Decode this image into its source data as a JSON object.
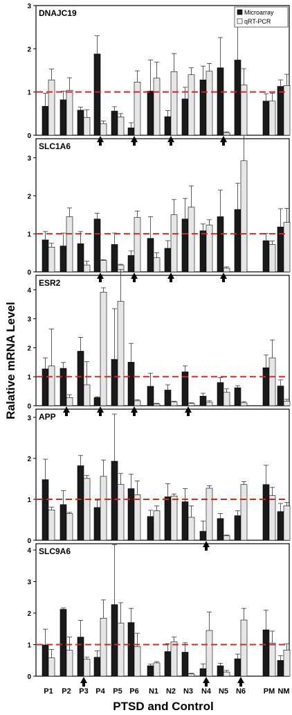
{
  "figure": {
    "ylabel": "Ralative mRNA Level",
    "xlabel": "PTSD and Control",
    "categories": [
      "P1",
      "P2",
      "P3",
      "P4",
      "P5",
      "P6",
      "N1",
      "N2",
      "N3",
      "N4",
      "N5",
      "N6",
      "PM",
      "NM"
    ],
    "legend": [
      "Microarray",
      "qRT-PCR"
    ],
    "reference_line": 1,
    "colors": {
      "microarray": "#1a1a1a",
      "qrtpcr": "#e6e6e6",
      "reference": "#d9251c",
      "arrow": "#000000"
    }
  },
  "chart_data": [
    {
      "type": "bar",
      "title": "DNAJC19",
      "ylim": [
        0,
        3
      ],
      "yticks": [
        0,
        1,
        2,
        3
      ],
      "categories": [
        "P1",
        "P2",
        "P3",
        "P4",
        "P5",
        "P6",
        "N1",
        "N2",
        "N3",
        "N4",
        "N5",
        "N6",
        "PM",
        "NM"
      ],
      "series": [
        {
          "name": "Microarray",
          "values": [
            0.67,
            0.82,
            0.58,
            1.88,
            0.56,
            0.17,
            1.02,
            0.43,
            0.84,
            1.28,
            1.56,
            1.74,
            0.79,
            1.13
          ],
          "errors": [
            0.3,
            0.2,
            0.07,
            0.42,
            0.1,
            0.12,
            0.72,
            0.14,
            0.27,
            0.32,
            0.7,
            1.0,
            0.17,
            0.15
          ]
        },
        {
          "name": "qRT-PCR",
          "values": [
            1.28,
            1.04,
            0.41,
            0.27,
            0.42,
            1.23,
            1.32,
            1.47,
            1.4,
            1.48,
            0.06,
            1.16,
            0.79,
            1.15
          ],
          "errors": [
            0.25,
            0.29,
            0.18,
            0.06,
            0.08,
            0.26,
            0.37,
            0.42,
            0.16,
            0.18,
            0.02,
            0.38,
            0.18,
            0.26
          ]
        }
      ],
      "arrows": [
        "P4",
        "P6",
        "N2",
        "N5"
      ],
      "legend_position": "top-right"
    },
    {
      "type": "bar",
      "title": "SLC1A6",
      "ylim": [
        0,
        3.5
      ],
      "yticks": [
        0,
        1,
        2,
        3
      ],
      "categories": [
        "P1",
        "P2",
        "P3",
        "P4",
        "P5",
        "P6",
        "N1",
        "N2",
        "N3",
        "N4",
        "N5",
        "N6",
        "PM",
        "NM"
      ],
      "series": [
        {
          "name": "Microarray",
          "values": [
            0.84,
            0.68,
            0.74,
            1.39,
            0.72,
            0.43,
            0.88,
            0.62,
            1.39,
            1.08,
            1.45,
            1.64,
            0.82,
            1.18
          ],
          "errors": [
            0.22,
            0.34,
            0.32,
            0.15,
            0.3,
            0.12,
            0.57,
            0.2,
            0.54,
            0.18,
            0.7,
            0.69,
            0.19,
            0.48
          ]
        },
        {
          "name": "qRT-PCR",
          "values": [
            0.65,
            1.45,
            0.18,
            0.3,
            0.18,
            1.43,
            0.37,
            1.5,
            1.7,
            1.23,
            0.1,
            2.92,
            0.72,
            1.3
          ],
          "errors": [
            0.1,
            0.23,
            0.1,
            0.02,
            0.02,
            0.17,
            0.13,
            0.4,
            0.56,
            0.14,
            0.03,
            0.67,
            0.09,
            0.37
          ]
        }
      ],
      "arrows": [
        "P4",
        "P6",
        "N2",
        "N5"
      ]
    },
    {
      "type": "bar",
      "title": "ESR2",
      "ylim": [
        0,
        4.5
      ],
      "yticks": [
        0,
        1,
        2,
        3,
        4
      ],
      "categories": [
        "P1",
        "P2",
        "P3",
        "P4",
        "P5",
        "P6",
        "N1",
        "N2",
        "N3",
        "N4",
        "N5",
        "N6",
        "PM",
        "NM"
      ],
      "series": [
        {
          "name": "Microarray",
          "values": [
            1.27,
            1.29,
            1.88,
            0.28,
            1.6,
            1.5,
            0.67,
            0.54,
            1.17,
            0.33,
            0.8,
            0.62,
            1.31,
            0.68
          ],
          "errors": [
            0.38,
            0.2,
            0.48,
            0.03,
            1.75,
            0.65,
            0.45,
            0.18,
            0.2,
            0.1,
            0.17,
            0.07,
            0.44,
            0.21
          ]
        },
        {
          "name": "qRT-PCR",
          "values": [
            1.37,
            0.28,
            0.72,
            3.92,
            3.6,
            0.17,
            0.06,
            0.13,
            0.08,
            0.12,
            0.46,
            0.1,
            1.65,
            0.16
          ]
        }
      ],
      "errors_secondary": [
        1.28,
        0.1,
        0.8,
        0.15,
        1.1,
        0.03,
        0.02,
        0.02,
        0.02,
        0.05,
        0.12,
        0.04,
        0.62,
        0.06
      ],
      "arrows": [
        "P2",
        "P4",
        "P6",
        "N3"
      ]
    },
    {
      "type": "bar",
      "title": "APP",
      "ylim": [
        0,
        3.2
      ],
      "yticks": [
        0,
        1,
        2,
        3
      ],
      "categories": [
        "P1",
        "P2",
        "P3",
        "P4",
        "P5",
        "P6",
        "N1",
        "N2",
        "N3",
        "N4",
        "N5",
        "N6",
        "PM",
        "NM"
      ],
      "series": [
        {
          "name": "Microarray",
          "values": [
            1.48,
            0.87,
            1.82,
            0.8,
            1.93,
            1.26,
            0.58,
            1.06,
            0.94,
            0.22,
            0.53,
            0.6,
            1.36,
            0.7
          ],
          "errors": [
            0.5,
            0.34,
            0.25,
            0.18,
            1.15,
            0.35,
            0.15,
            0.32,
            0.32,
            0.25,
            0.12,
            0.12,
            0.47,
            0.2
          ]
        },
        {
          "name": "qRT-PCR",
          "values": [
            0.74,
            0.65,
            1.51,
            1.56,
            1.36,
            1.11,
            0.72,
            1.08,
            0.56,
            1.27,
            0.11,
            1.36,
            1.09,
            0.84
          ],
          "errors": [
            0.07,
            0.03,
            0.07,
            0.4,
            0.27,
            0.34,
            0.12,
            0.05,
            0.28,
            0.06,
            0.02,
            0.07,
            0.2,
            0.08
          ]
        }
      ],
      "arrows": [
        "N4"
      ]
    },
    {
      "type": "bar",
      "title": "SLC9A6",
      "ylim": [
        0,
        4.2
      ],
      "yticks": [
        0,
        1,
        2,
        3,
        4
      ],
      "categories": [
        "P1",
        "P2",
        "P3",
        "P4",
        "P5",
        "P6",
        "N1",
        "N2",
        "N3",
        "N4",
        "N5",
        "N6",
        "PM",
        "NM"
      ],
      "series": [
        {
          "name": "Microarray",
          "values": [
            0.99,
            2.12,
            1.24,
            0.6,
            2.27,
            1.7,
            0.33,
            0.78,
            0.76,
            0.24,
            0.33,
            0.55,
            1.47,
            0.5
          ],
          "errors": [
            0.5,
            0.04,
            0.53,
            0.2,
            1.9,
            0.45,
            0.05,
            0.25,
            0.3,
            0.15,
            0.08,
            0.15,
            0.62,
            0.15
          ]
        },
        {
          "name": "qRT-PCR",
          "values": [
            0.58,
            0.82,
            0.54,
            1.84,
            1.68,
            0.94,
            0.42,
            1.09,
            0.07,
            1.45,
            0.13,
            1.78,
            1.05,
            0.83
          ],
          "errors": [
            0.27,
            0.42,
            0.06,
            0.58,
            0.65,
            0.42,
            0.04,
            0.15,
            0.02,
            0.58,
            0.05,
            0.37,
            0.38,
            0.2
          ]
        }
      ],
      "arrows": [
        "P3",
        "N4",
        "N6"
      ]
    }
  ]
}
